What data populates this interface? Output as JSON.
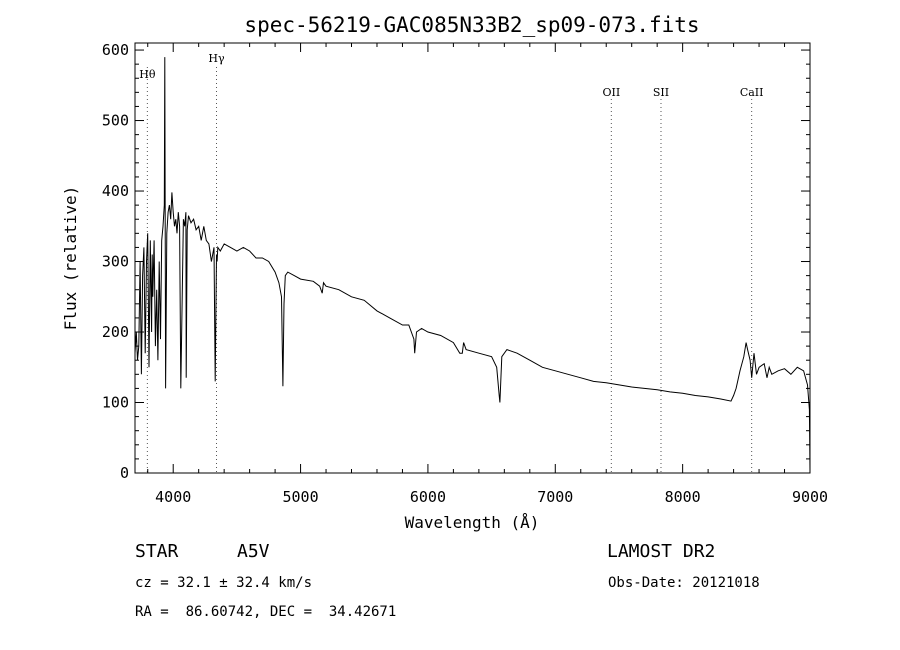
{
  "chart_data": {
    "type": "line",
    "title": "spec-56219-GAC085N33B2_sp09-073.fits",
    "xlabel": "Wavelength (Å)",
    "ylabel": "Flux (relative)",
    "xlim": [
      3700,
      9000
    ],
    "ylim": [
      0,
      610
    ],
    "xticks": [
      4000,
      5000,
      6000,
      7000,
      8000,
      9000
    ],
    "yticks": [
      0,
      100,
      200,
      300,
      400,
      500,
      600
    ],
    "grid": false,
    "series": [
      {
        "x": [
          3700,
          3710,
          3720,
          3730,
          3740,
          3750,
          3760,
          3770,
          3780,
          3790,
          3800,
          3810,
          3820,
          3830,
          3835,
          3840,
          3850,
          3860,
          3870,
          3880,
          3890,
          3900,
          3910,
          3920,
          3930,
          3934,
          3940,
          3950,
          3960,
          3970,
          3980,
          3990,
          4000,
          4010,
          4020,
          4030,
          4040,
          4050,
          4060,
          4080,
          4090,
          4100,
          4102,
          4110,
          4120,
          4140,
          4160,
          4180,
          4200,
          4220,
          4240,
          4260,
          4280,
          4300,
          4320,
          4330,
          4340,
          4345,
          4350,
          4370,
          4400,
          4450,
          4500,
          4550,
          4600,
          4650,
          4700,
          4750,
          4800,
          4830,
          4850,
          4861,
          4870,
          4880,
          4900,
          4950,
          5000,
          5100,
          5150,
          5170,
          5180,
          5200,
          5300,
          5400,
          5500,
          5600,
          5700,
          5800,
          5850,
          5890,
          5896,
          5910,
          5950,
          6000,
          6100,
          6200,
          6250,
          6270,
          6280,
          6300,
          6400,
          6500,
          6540,
          6560,
          6565,
          6580,
          6620,
          6700,
          6800,
          6900,
          7000,
          7100,
          7200,
          7300,
          7400,
          7500,
          7600,
          7700,
          7800,
          7900,
          8000,
          8100,
          8200,
          8300,
          8380,
          8400,
          8420,
          8450,
          8480,
          8498,
          8510,
          8530,
          8542,
          8560,
          8580,
          8600,
          8640,
          8662,
          8680,
          8700,
          8750,
          8800,
          8850,
          8900,
          8950,
          8980,
          8995,
          9000
        ],
        "values": [
          170,
          200,
          160,
          180,
          300,
          140,
          280,
          320,
          170,
          300,
          340,
          150,
          330,
          200,
          310,
          250,
          330,
          180,
          260,
          160,
          300,
          190,
          330,
          350,
          380,
          590,
          120,
          340,
          370,
          380,
          360,
          398,
          370,
          350,
          360,
          340,
          370,
          350,
          120,
          360,
          350,
          370,
          135,
          345,
          365,
          355,
          360,
          345,
          350,
          330,
          350,
          330,
          325,
          300,
          320,
          130,
          310,
          300,
          320,
          315,
          325,
          320,
          315,
          320,
          315,
          305,
          305,
          300,
          285,
          270,
          250,
          123,
          240,
          280,
          285,
          280,
          275,
          272,
          265,
          255,
          270,
          265,
          260,
          250,
          245,
          230,
          220,
          210,
          210,
          190,
          170,
          200,
          205,
          200,
          195,
          185,
          170,
          170,
          185,
          175,
          170,
          165,
          150,
          110,
          100,
          165,
          175,
          170,
          160,
          150,
          145,
          140,
          135,
          130,
          128,
          125,
          122,
          120,
          118,
          115,
          113,
          110,
          108,
          105,
          102,
          110,
          120,
          145,
          165,
          185,
          175,
          160,
          135,
          170,
          140,
          150,
          155,
          135,
          150,
          140,
          145,
          148,
          140,
          150,
          145,
          125,
          90,
          0
        ]
      }
    ],
    "line_markers": [
      {
        "label": "Hθ",
        "x": 3797
      },
      {
        "label": "Hγ",
        "x": 4340
      },
      {
        "label": "OII",
        "x": 7440
      },
      {
        "label": "SII",
        "x": 7830
      },
      {
        "label": "CaII",
        "x": 8542
      }
    ]
  },
  "info": {
    "object_type": "STAR",
    "subclass": "A5V",
    "survey": "LAMOST DR2",
    "cz": "cz = 32.1 ± 32.4 km/s",
    "obs_date": "Obs-Date: 20121018",
    "coords": "RA =  86.60742, DEC =  34.42671"
  }
}
